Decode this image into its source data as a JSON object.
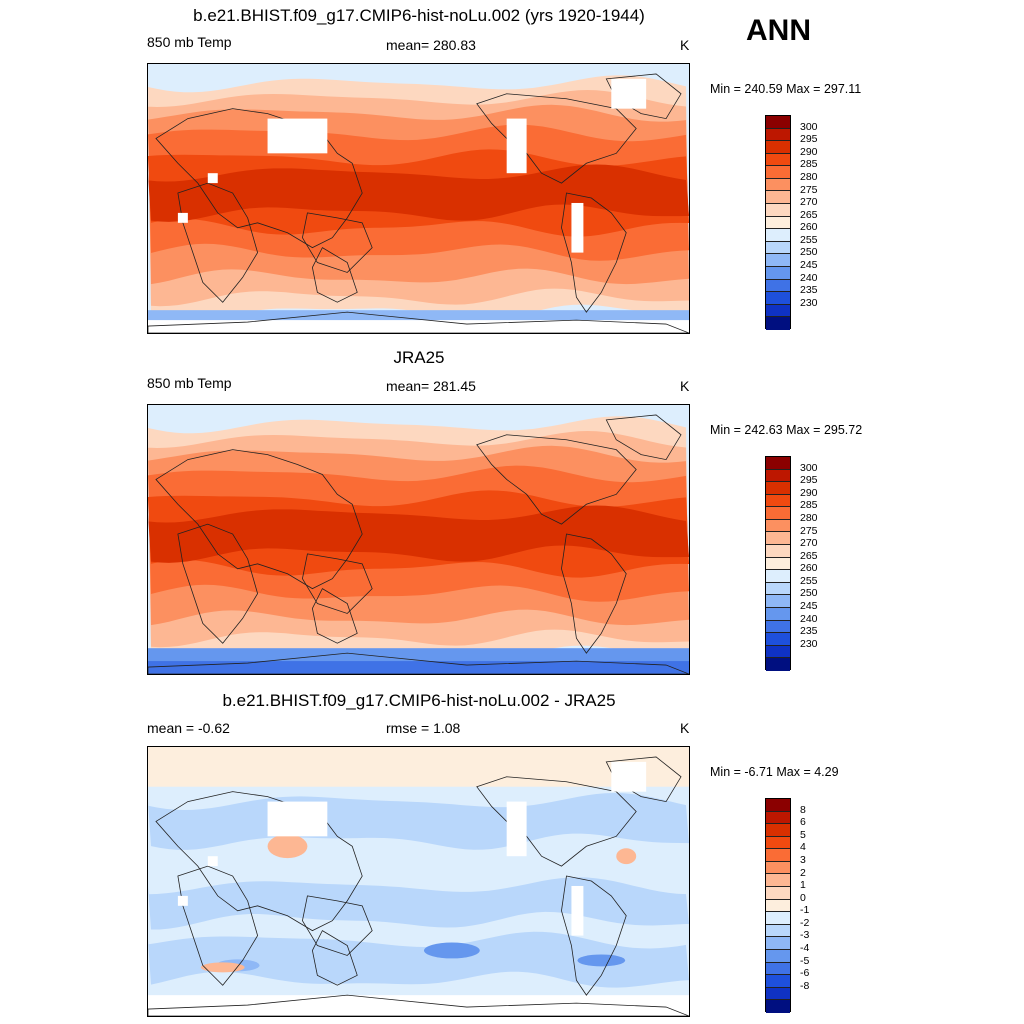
{
  "season": "ANN",
  "panels": [
    {
      "title": "b.e21.BHIST.f09_g17.CMIP6-hist-noLu.002 (yrs 1920-1944)",
      "left_label": "850 mb Temp",
      "center_label": "mean= 280.83",
      "units": "K",
      "minmax": "Min = 240.59 Max = 297.11",
      "colorbar": {
        "labels": [
          "300",
          "295",
          "290",
          "285",
          "280",
          "275",
          "270",
          "265",
          "260",
          "255",
          "250",
          "245",
          "240",
          "235",
          "230"
        ],
        "colors": [
          "#8b0000",
          "#bd1700",
          "#d93000",
          "#f04a10",
          "#fa6c35",
          "#fc9060",
          "#fdb793",
          "#fdd8c0",
          "#fdeedd",
          "#ddeefd",
          "#b9d7fb",
          "#8fb8f6",
          "#6597ee",
          "#3f72e6",
          "#1e50dc",
          "#0f32c4",
          "#000f80"
        ]
      },
      "map": {
        "type": "model",
        "fields": [
          "antarctic-cold",
          "polar-cool",
          "midlat-mild",
          "subtropic-warm",
          "tropic-hot",
          "missing-data-masks"
        ]
      }
    },
    {
      "title": "JRA25",
      "left_label": "850 mb Temp",
      "center_label": "mean= 281.45",
      "units": "K",
      "minmax": "Min = 242.63 Max = 295.72",
      "colorbar": {
        "labels": [
          "300",
          "295",
          "290",
          "285",
          "280",
          "275",
          "270",
          "265",
          "260",
          "255",
          "250",
          "245",
          "240",
          "235",
          "230"
        ],
        "colors": [
          "#8b0000",
          "#bd1700",
          "#d93000",
          "#f04a10",
          "#fa6c35",
          "#fc9060",
          "#fdb793",
          "#fdd8c0",
          "#fdeedd",
          "#ddeefd",
          "#b9d7fb",
          "#8fb8f6",
          "#6597ee",
          "#3f72e6",
          "#1e50dc",
          "#0f32c4",
          "#000f80"
        ]
      },
      "map": {
        "type": "obs",
        "fields": [
          "antarctic-cold",
          "polar-cool",
          "midlat-mild",
          "subtropic-warm",
          "tropic-hot"
        ]
      }
    },
    {
      "title": "b.e21.BHIST.f09_g17.CMIP6-hist-noLu.002 - JRA25",
      "left_label": "mean =  -0.62",
      "center_label": "rmse =   1.08",
      "units": "K",
      "minmax": "Min =  -6.71 Max =   4.29",
      "colorbar": {
        "labels": [
          "8",
          "6",
          "5",
          "4",
          "3",
          "2",
          "1",
          "0",
          "-1",
          "-2",
          "-3",
          "-4",
          "-5",
          "-6",
          "-8"
        ],
        "colors": [
          "#8b0000",
          "#bd1700",
          "#d93000",
          "#f04a10",
          "#fa6c35",
          "#fc9060",
          "#fdb793",
          "#fdd8c0",
          "#fdeedd",
          "#ddeefd",
          "#b9d7fb",
          "#8fb8f6",
          "#6597ee",
          "#3f72e6",
          "#1e50dc",
          "#0f32c4",
          "#000f80"
        ]
      },
      "map": {
        "type": "diff",
        "fields": [
          "diff-cool-background",
          "diff-warm-arctic",
          "diff-cold-bands",
          "missing-data-masks"
        ]
      }
    }
  ]
}
